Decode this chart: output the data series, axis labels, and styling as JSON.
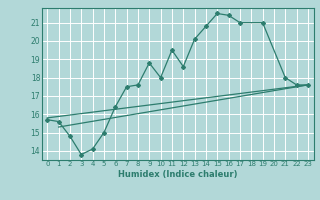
{
  "xlabel": "Humidex (Indice chaleur)",
  "bg_color": "#b2d8d8",
  "grid_color": "#ffffff",
  "line_color": "#2d7d6e",
  "xlim": [
    -0.5,
    23.5
  ],
  "ylim": [
    13.5,
    21.8
  ],
  "xticks": [
    0,
    1,
    2,
    3,
    4,
    5,
    6,
    7,
    8,
    9,
    10,
    11,
    12,
    13,
    14,
    15,
    16,
    17,
    18,
    19,
    20,
    21,
    22,
    23
  ],
  "yticks": [
    14,
    15,
    16,
    17,
    18,
    19,
    20,
    21
  ],
  "line1_x": [
    0,
    1,
    2,
    3,
    4,
    5,
    6,
    7,
    8,
    9,
    10,
    11,
    12,
    13,
    14,
    15,
    16,
    17,
    19,
    21,
    22,
    23
  ],
  "line1_y": [
    15.7,
    15.6,
    14.8,
    13.8,
    14.1,
    15.0,
    16.4,
    17.5,
    17.6,
    18.8,
    18.0,
    19.5,
    18.6,
    20.1,
    20.8,
    21.5,
    21.4,
    21.0,
    21.0,
    18.0,
    17.6,
    17.6
  ],
  "line2_x": [
    0,
    23
  ],
  "line2_y": [
    15.8,
    17.6
  ],
  "line3_x": [
    1,
    23
  ],
  "line3_y": [
    15.3,
    17.6
  ]
}
